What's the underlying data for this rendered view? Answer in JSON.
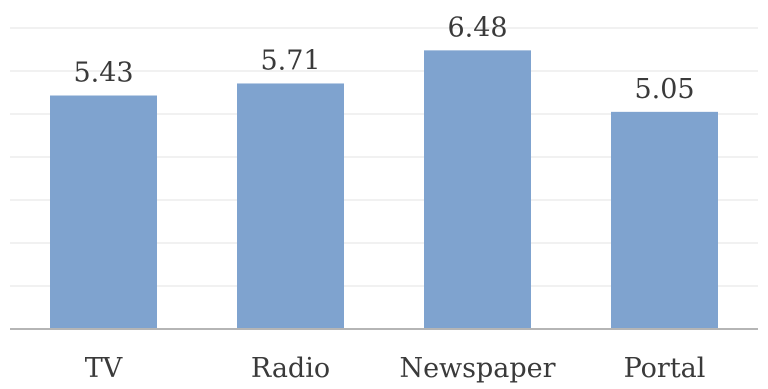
{
  "chart_data": {
    "type": "bar",
    "categories": [
      "TV",
      "Radio",
      "Newspaper",
      "Portal"
    ],
    "values": [
      5.43,
      5.71,
      6.48,
      5.05
    ],
    "title": "",
    "xlabel": "",
    "ylabel": "",
    "ylim": [
      0,
      7.5
    ],
    "grid": true,
    "legend": "none",
    "bar_color": "#7fa3cf",
    "value_labels": [
      "5.43",
      "5.71",
      "6.48",
      "5.05"
    ]
  }
}
